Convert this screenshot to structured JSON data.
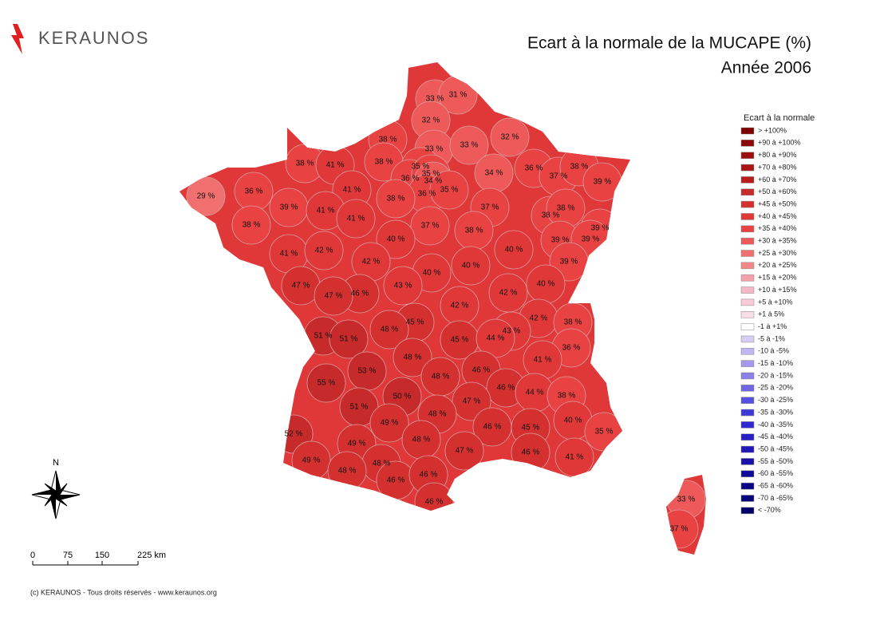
{
  "header": {
    "logo": "KERAUNOS",
    "title": "Ecart à la normale de la MUCAPE (%)",
    "subtitle": "Année 2006"
  },
  "map": {
    "values": [
      33,
      31,
      32,
      38,
      33,
      33,
      32,
      38,
      41,
      38,
      35,
      36,
      35,
      34,
      36,
      35,
      34,
      36,
      37,
      38,
      39,
      29,
      36,
      41,
      38,
      39,
      41,
      41,
      37,
      38,
      38,
      38,
      37,
      38,
      39,
      39,
      39,
      40,
      41,
      42,
      40,
      42,
      40,
      39,
      40,
      47,
      46,
      47,
      43,
      40,
      42,
      42,
      42,
      38,
      45,
      48,
      43,
      51,
      51,
      45,
      44,
      36,
      48,
      41,
      53,
      46,
      48,
      55,
      46,
      44,
      38,
      50,
      47,
      51,
      48,
      49,
      40,
      52,
      46,
      45,
      35,
      48,
      49,
      47,
      46,
      41,
      49,
      48,
      48,
      46,
      46,
      46,
      33,
      37
    ],
    "value_labels": [
      "33 %",
      "31 %",
      "32 %",
      "38 %",
      "33 %",
      "33 %",
      "32 %",
      "38 %",
      "41 %",
      "38 %",
      "35 %",
      "36 %",
      "35 %",
      "34 %",
      "36 %",
      "35 %",
      "34 %",
      "36 %",
      "37 %",
      "38 %",
      "39 %",
      "29 %",
      "36 %",
      "41 %",
      "38 %",
      "39 %",
      "41 %",
      "41 %",
      "37 %",
      "38 %",
      "38 %",
      "38 %",
      "37 %",
      "38 %",
      "39 %",
      "39 %",
      "39 %",
      "40 %",
      "41 %",
      "42 %",
      "40 %",
      "42 %",
      "40 %",
      "39 %",
      "40 %",
      "47 %",
      "46 %",
      "47 %",
      "43 %",
      "40 %",
      "42 %",
      "42 %",
      "42 %",
      "38 %",
      "45 %",
      "48 %",
      "43 %",
      "51 %",
      "51 %",
      "45 %",
      "44 %",
      "36 %",
      "48 %",
      "41 %",
      "53 %",
      "46 %",
      "48 %",
      "55 %",
      "46 %",
      "44 %",
      "38 %",
      "50 %",
      "47 %",
      "51 %",
      "48 %",
      "49 %",
      "40 %",
      "52 %",
      "46 %",
      "45 %",
      "35 %",
      "48 %",
      "49 %",
      "47 %",
      "46 %",
      "41 %",
      "49 %",
      "48 %",
      "48 %",
      "46 %",
      "46 %",
      "46 %",
      "33 %",
      "37 %"
    ]
  },
  "legend": {
    "title": "Ecart à la normale",
    "items": [
      {
        "label": "> +100%",
        "min": 100,
        "color": "#7d0000"
      },
      {
        "label": "+90 à +100%",
        "min": 90,
        "color": "#8c0808"
      },
      {
        "label": "+80 à +90%",
        "min": 80,
        "color": "#9b0e0e"
      },
      {
        "label": "+70 à +80%",
        "min": 70,
        "color": "#aa1414"
      },
      {
        "label": "+60 à +70%",
        "min": 60,
        "color": "#b81c1c"
      },
      {
        "label": "+50 à +60%",
        "min": 50,
        "color": "#c72a2a"
      },
      {
        "label": "+45 à +50%",
        "min": 45,
        "color": "#d53030"
      },
      {
        "label": "+40 à +45%",
        "min": 40,
        "color": "#e03838"
      },
      {
        "label": "+35 à +40%",
        "min": 35,
        "color": "#e84242"
      },
      {
        "label": "+30 à +35%",
        "min": 30,
        "color": "#ee5a5a"
      },
      {
        "label": "+25 à +30%",
        "min": 25,
        "color": "#f07070"
      },
      {
        "label": "+20 à +25%",
        "min": 20,
        "color": "#f28888"
      },
      {
        "label": "+15 à +20%",
        "min": 15,
        "color": "#f5a0aa"
      },
      {
        "label": "+10 à +15%",
        "min": 10,
        "color": "#f7b8c6"
      },
      {
        "label": "+5 à +10%",
        "min": 5,
        "color": "#f9cad8"
      },
      {
        "label": "+1 à 5%",
        "min": 1,
        "color": "#fbdde8"
      },
      {
        "label": "-1 à +1%",
        "min": -1,
        "color": "#ffffff"
      },
      {
        "label": "-5 à -1%",
        "min": -5,
        "color": "#d6cef4"
      },
      {
        "label": "-10 à -5%",
        "min": -10,
        "color": "#c0b6f0"
      },
      {
        "label": "-15 à -10%",
        "min": -15,
        "color": "#a698ec"
      },
      {
        "label": "-20 à -15%",
        "min": -20,
        "color": "#8a80e8"
      },
      {
        "label": "-25 à -20%",
        "min": -25,
        "color": "#6e66e4"
      },
      {
        "label": "-30 à -25%",
        "min": -30,
        "color": "#5650e0"
      },
      {
        "label": "-35 à -30%",
        "min": -35,
        "color": "#3e38d8"
      },
      {
        "label": "-40 à -35%",
        "min": -40,
        "color": "#3028d0"
      },
      {
        "label": "-45 à -40%",
        "min": -45,
        "color": "#2820c4"
      },
      {
        "label": "-50 à -45%",
        "min": -50,
        "color": "#2018b8"
      },
      {
        "label": "-55 à -50%",
        "min": -55,
        "color": "#1810a8"
      },
      {
        "label": "-60 à -55%",
        "min": -60,
        "color": "#100a98"
      },
      {
        "label": "-65 à -60%",
        "min": -65,
        "color": "#0a0688"
      },
      {
        "label": "-70 à -65%",
        "min": -70,
        "color": "#060478"
      },
      {
        "label": "< -70%",
        "color": "#000068"
      }
    ]
  },
  "north": "N",
  "scale_bar": [
    "0",
    "75",
    "150",
    "225 km"
  ],
  "footer": "(c) KERAUNOS - Tous droits réservés - www.keraunos.org"
}
